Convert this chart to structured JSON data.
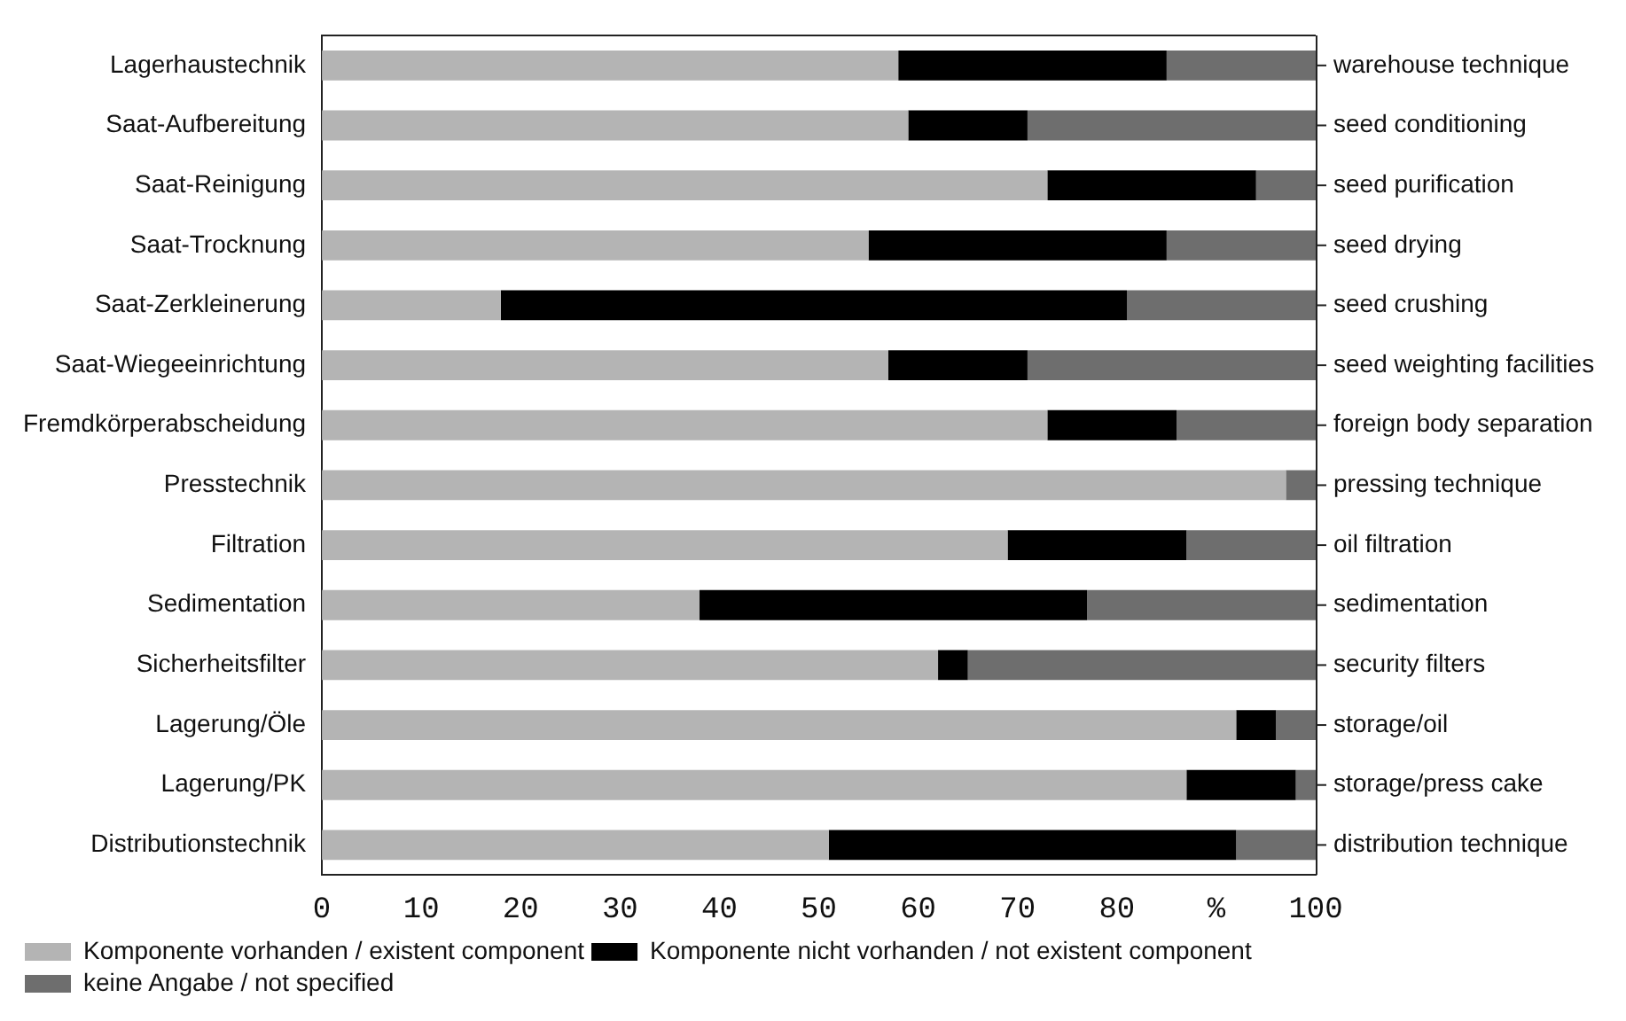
{
  "chart_data": {
    "type": "bar",
    "orientation": "horizontal",
    "stacked": true,
    "categories": [
      "Lagerhaustechnik",
      "Saat-Aufbereitung",
      "Saat-Reinigung",
      "Saat-Trocknung",
      "Saat-Zerkleinerung",
      "Saat-Wiegeeinrichtung",
      "Fremdkörperabscheidung",
      "Presstechnik",
      "Filtration",
      "Sedimentation",
      "Sicherheitsfilter",
      "Lagerung/Öle",
      "Lagerung/PK",
      "Distributionstechnik"
    ],
    "y2_categories": [
      "warehouse technique",
      "seed conditioning",
      "seed purification",
      "seed drying",
      "seed crushing",
      "seed weighting facilities",
      "foreign body separation",
      "pressing technique",
      "oil filtration",
      "sedimentation",
      "security filters",
      "storage/oil",
      "storage/press cake",
      "distribution technique"
    ],
    "series": [
      {
        "name": "Komponente vorhanden / existent component",
        "color": "#b4b4b4",
        "values": [
          58,
          59,
          73,
          55,
          18,
          57,
          73,
          97,
          69,
          38,
          62,
          92,
          87,
          51
        ]
      },
      {
        "name": "Komponente nicht vorhanden / not existent component",
        "color": "#000000",
        "values": [
          27,
          12,
          21,
          30,
          63,
          14,
          13,
          0,
          18,
          39,
          3,
          4,
          11,
          41
        ]
      },
      {
        "name": "keine Angabe / not specified",
        "color": "#6e6e6e",
        "values": [
          15,
          29,
          6,
          15,
          19,
          29,
          14,
          3,
          13,
          23,
          35,
          4,
          2,
          8
        ]
      }
    ],
    "xlim": [
      0,
      100
    ],
    "xticks": [
      0,
      10,
      20,
      30,
      40,
      50,
      60,
      70,
      80,
      {
        "value": 90,
        "label": "%"
      },
      100
    ],
    "grid": false,
    "legend": "bottom left"
  }
}
